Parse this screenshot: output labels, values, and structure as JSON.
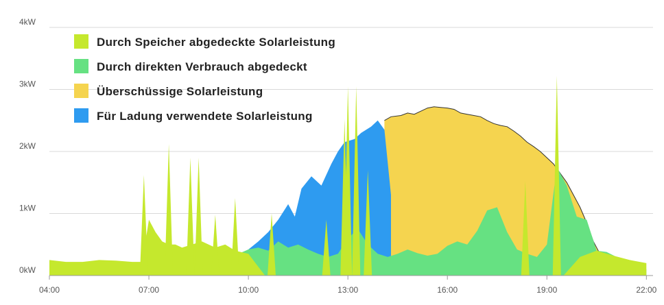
{
  "chart_data": {
    "type": "area",
    "title": "",
    "xlabel": "",
    "ylabel": "",
    "xlim": [
      4,
      22.2
    ],
    "ylim": [
      0,
      4
    ],
    "y_ticks": [
      {
        "value": 0,
        "label": "0kW"
      },
      {
        "value": 1,
        "label": "1kW"
      },
      {
        "value": 2,
        "label": "2kW"
      },
      {
        "value": 3,
        "label": "3kW"
      },
      {
        "value": 4,
        "label": "4kW"
      }
    ],
    "x_ticks": [
      {
        "value": 4,
        "label": "04:00"
      },
      {
        "value": 7,
        "label": "07:00"
      },
      {
        "value": 10,
        "label": "10:00"
      },
      {
        "value": 13,
        "label": "13:00"
      },
      {
        "value": 16,
        "label": "16:00"
      },
      {
        "value": 19,
        "label": "19:00"
      },
      {
        "value": 22,
        "label": "22:00"
      }
    ],
    "grid": true,
    "legend_position": "top-left",
    "series": [
      {
        "name": "Überschüssige Solarleistung",
        "color": "#f5d44f",
        "x": [
          14.1,
          14.3,
          14.6,
          14.8,
          15.0,
          15.2,
          15.4,
          15.6,
          15.8,
          16.0,
          16.2,
          16.4,
          16.6,
          16.8,
          17.0,
          17.2,
          17.4,
          17.6,
          17.8,
          18.0,
          18.2,
          18.4,
          18.6,
          18.8,
          19.0,
          19.2,
          19.4,
          19.6,
          19.8,
          20.0,
          20.2,
          20.4,
          20.6
        ],
        "values": [
          2.5,
          2.56,
          2.58,
          2.62,
          2.6,
          2.65,
          2.7,
          2.72,
          2.71,
          2.7,
          2.68,
          2.62,
          2.6,
          2.58,
          2.56,
          2.5,
          2.45,
          2.42,
          2.4,
          2.33,
          2.25,
          2.15,
          2.08,
          2.0,
          1.9,
          1.8,
          1.65,
          1.5,
          1.3,
          1.1,
          0.85,
          0.55,
          0.35
        ],
        "outline": true
      },
      {
        "name": "Für Ladung verwendete Solarleistung",
        "color": "#2e9bf0",
        "x": [
          9.5,
          9.8,
          10.0,
          10.3,
          10.6,
          10.9,
          11.2,
          11.4,
          11.6,
          11.9,
          12.2,
          12.5,
          12.7,
          12.9,
          13.2,
          13.4,
          13.7,
          13.9,
          14.1,
          14.3
        ],
        "values": [
          0.34,
          0.36,
          0.42,
          0.55,
          0.7,
          0.9,
          1.15,
          0.95,
          1.4,
          1.6,
          1.45,
          1.8,
          2.0,
          2.15,
          2.2,
          2.3,
          2.4,
          2.5,
          2.35,
          1.3
        ]
      },
      {
        "name": "Durch direkten Verbrauch abgedeckt",
        "color": "#66e182",
        "x": [
          4.0,
          5.5,
          6.0,
          6.5,
          6.8,
          7.2,
          7.6,
          8.0,
          8.4,
          8.8,
          9.1,
          9.4,
          9.7,
          10.0,
          10.3,
          10.6,
          10.9,
          11.2,
          11.5,
          11.8,
          12.1,
          12.4,
          12.7,
          13.0,
          13.3,
          13.6,
          13.9,
          14.2,
          14.5,
          14.8,
          15.1,
          15.4,
          15.7,
          16.0,
          16.3,
          16.6,
          16.9,
          17.2,
          17.5,
          17.8,
          18.1,
          18.4,
          18.7,
          19.0,
          19.3,
          19.6,
          19.9,
          20.2,
          20.5,
          20.8,
          21.1,
          21.4,
          21.7,
          22.0
        ],
        "values": [
          0.0,
          0.0,
          0.1,
          0.12,
          0.15,
          0.2,
          0.25,
          0.28,
          0.3,
          0.32,
          0.36,
          0.4,
          0.35,
          0.42,
          0.45,
          0.4,
          0.55,
          0.45,
          0.5,
          0.42,
          0.35,
          0.3,
          0.35,
          0.6,
          0.75,
          0.5,
          0.35,
          0.3,
          0.35,
          0.42,
          0.36,
          0.32,
          0.35,
          0.48,
          0.55,
          0.5,
          0.72,
          1.05,
          1.1,
          0.7,
          0.42,
          0.35,
          0.3,
          0.5,
          1.75,
          1.45,
          0.95,
          0.9,
          0.4,
          0.38,
          0.3,
          0.25,
          0.2,
          0.1
        ]
      },
      {
        "name": "Durch Speicher abgedeckte Solarleistung",
        "color": "#c5e82d",
        "x": [
          4.0,
          4.5,
          5.0,
          5.5,
          6.0,
          6.5,
          6.8,
          7.0,
          7.2,
          7.4,
          7.6,
          7.8,
          8.0,
          8.3,
          8.6,
          9.0,
          9.3,
          9.6,
          10.0,
          10.5,
          11.0,
          11.5,
          12.0,
          12.5,
          13.0,
          13.5,
          14.0,
          14.5,
          15.0,
          16.0,
          17.0,
          18.0,
          19.0,
          19.5,
          20.0,
          20.5,
          21.0,
          21.5,
          22.0
        ],
        "values": [
          0.25,
          0.22,
          0.22,
          0.25,
          0.24,
          0.22,
          0.22,
          0.9,
          0.7,
          0.55,
          0.5,
          0.5,
          0.45,
          0.5,
          0.55,
          0.45,
          0.5,
          0.4,
          0.35,
          0.0,
          0.0,
          0.0,
          0.0,
          0.0,
          0.0,
          0.0,
          0.0,
          0.0,
          0.0,
          0.0,
          0.0,
          0.0,
          0.0,
          0.0,
          0.3,
          0.4,
          0.32,
          0.25,
          0.2
        ],
        "spikes": [
          {
            "x": 6.85,
            "value": 1.62
          },
          {
            "x": 7.6,
            "value": 2.12
          },
          {
            "x": 8.25,
            "value": 1.9
          },
          {
            "x": 8.5,
            "value": 1.9
          },
          {
            "x": 9.0,
            "value": 0.98
          },
          {
            "x": 9.6,
            "value": 1.25
          },
          {
            "x": 10.7,
            "value": 1.0
          },
          {
            "x": 12.35,
            "value": 0.9
          },
          {
            "x": 12.9,
            "value": 2.52
          },
          {
            "x": 13.0,
            "value": 3.05
          },
          {
            "x": 13.25,
            "value": 3.05
          },
          {
            "x": 13.6,
            "value": 1.7
          },
          {
            "x": 18.35,
            "value": 1.52
          },
          {
            "x": 19.3,
            "value": 3.22
          }
        ]
      }
    ],
    "legend": [
      {
        "label": "Durch Speicher abgedeckte Solarleistung",
        "color": "#c5e82d"
      },
      {
        "label": "Durch direkten Verbrauch abgedeckt",
        "color": "#66e182"
      },
      {
        "label": "Überschüssige Solarleistung",
        "color": "#f5d44f"
      },
      {
        "label": "Für Ladung verwendete Solarleistung",
        "color": "#2e9bf0"
      }
    ]
  }
}
